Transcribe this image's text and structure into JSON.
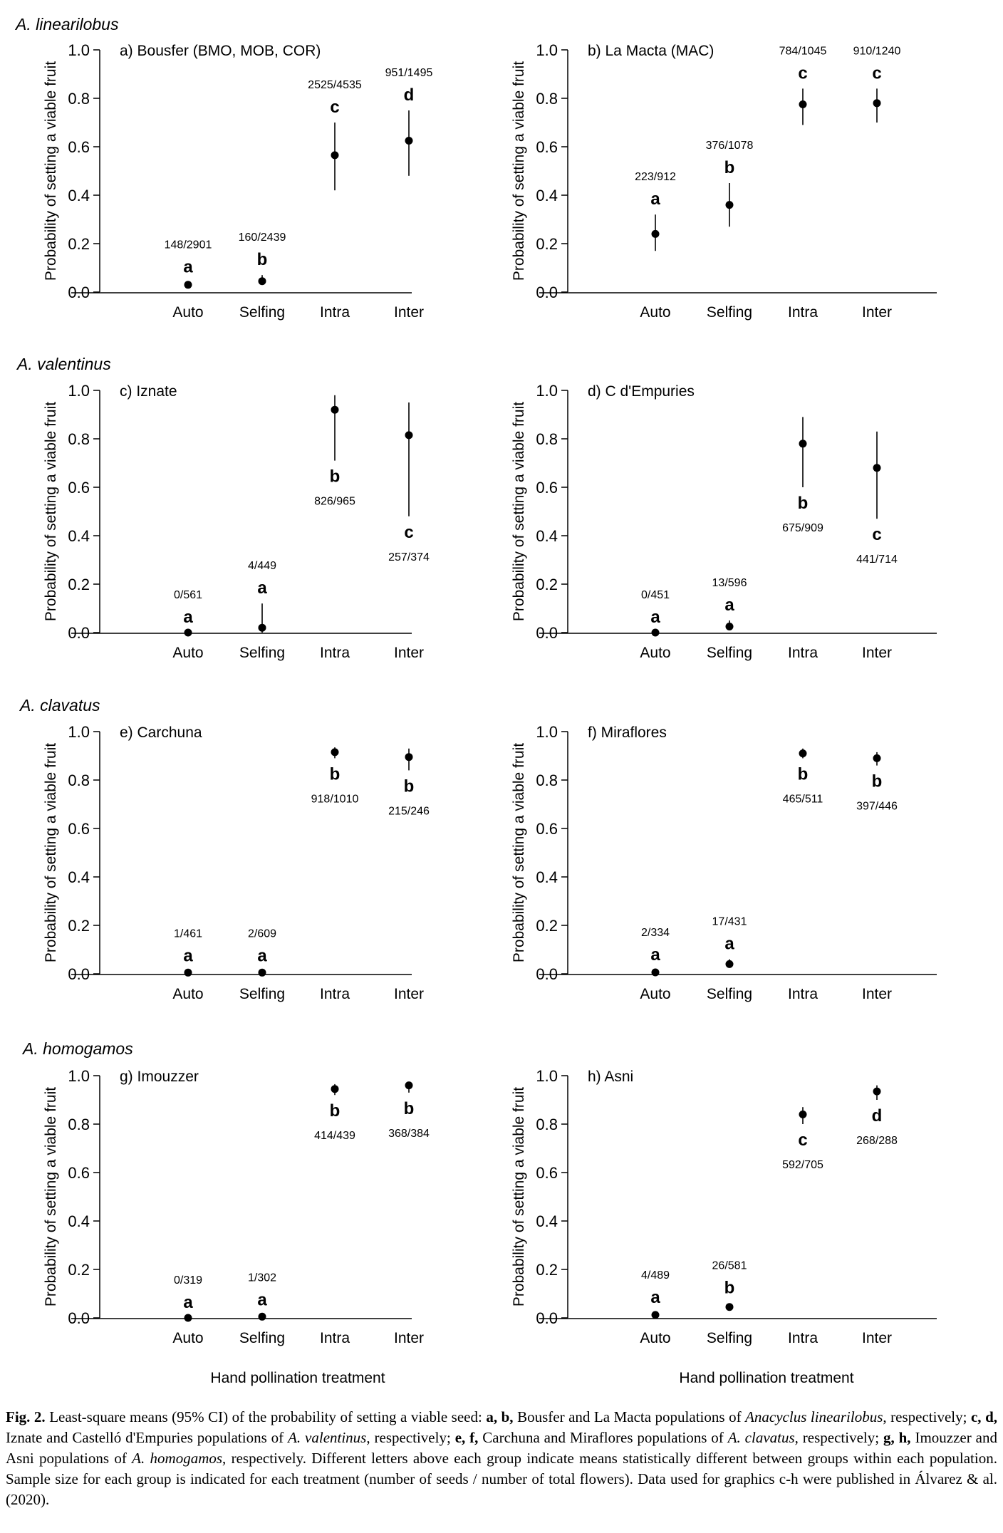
{
  "figure": {
    "xlabel": "Hand pollination treatment",
    "ylabel": "Probability of setting a viable fruit"
  },
  "species": [
    {
      "name": "A. linearilobus"
    },
    {
      "name": "A. valentinus"
    },
    {
      "name": "A. clavatus"
    },
    {
      "name": "A. homogamos"
    }
  ],
  "chart_data": [
    {
      "type": "scatter",
      "panel": "a",
      "title": "a) Bousfer (BMO, MOB, COR)",
      "species": "A. linearilobus",
      "categories": [
        "Auto",
        "Selfing",
        "Intra",
        "Inter"
      ],
      "ylim": [
        0,
        1
      ],
      "yticks": [
        "0.0",
        "0.2",
        "0.4",
        "0.6",
        "0.8",
        "1.0"
      ],
      "points": [
        {
          "x": "Auto",
          "y": 0.03,
          "ci": [
            0.02,
            0.04
          ],
          "letter": "a",
          "n": "148/2901",
          "label_pos": "above"
        },
        {
          "x": "Selfing",
          "y": 0.045,
          "ci": [
            0.03,
            0.07
          ],
          "letter": "b",
          "n": "160/2439",
          "label_pos": "above"
        },
        {
          "x": "Intra",
          "y": 0.565,
          "ci": [
            0.42,
            0.7
          ],
          "letter": "c",
          "n": "2525/4535",
          "label_pos": "above"
        },
        {
          "x": "Inter",
          "y": 0.625,
          "ci": [
            0.48,
            0.75
          ],
          "letter": "d",
          "n": "951/1495",
          "label_pos": "above"
        }
      ]
    },
    {
      "type": "scatter",
      "panel": "b",
      "title": "b) La Macta (MAC)",
      "species": "A. linearilobus",
      "categories": [
        "Auto",
        "Selfing",
        "Intra",
        "Inter"
      ],
      "ylim": [
        0,
        1
      ],
      "yticks": [
        "0.0",
        "0.2",
        "0.4",
        "0.6",
        "0.8",
        "1.0"
      ],
      "points": [
        {
          "x": "Auto",
          "y": 0.24,
          "ci": [
            0.17,
            0.32
          ],
          "letter": "a",
          "n": "223/912",
          "label_pos": "above"
        },
        {
          "x": "Selfing",
          "y": 0.36,
          "ci": [
            0.27,
            0.45
          ],
          "letter": "b",
          "n": "376/1078",
          "label_pos": "above"
        },
        {
          "x": "Intra",
          "y": 0.775,
          "ci": [
            0.69,
            0.84
          ],
          "letter": "c",
          "n": "784/1045",
          "label_pos": "above"
        },
        {
          "x": "Inter",
          "y": 0.78,
          "ci": [
            0.7,
            0.84
          ],
          "letter": "c",
          "n": "910/1240",
          "label_pos": "above"
        }
      ]
    },
    {
      "type": "scatter",
      "panel": "c",
      "title": "c) Iznate",
      "species": "A. valentinus",
      "categories": [
        "Auto",
        "Selfing",
        "Intra",
        "Inter"
      ],
      "ylim": [
        0,
        1
      ],
      "yticks": [
        "0.0",
        "0.2",
        "0.4",
        "0.6",
        "0.8",
        "1.0"
      ],
      "points": [
        {
          "x": "Auto",
          "y": 0.0,
          "ci": [
            0.0,
            0.0
          ],
          "letter": "a",
          "n": "0/561",
          "label_pos": "above"
        },
        {
          "x": "Selfing",
          "y": 0.02,
          "ci": [
            0.0,
            0.12
          ],
          "letter": "a",
          "n": "4/449",
          "label_pos": "above"
        },
        {
          "x": "Intra",
          "y": 0.92,
          "ci": [
            0.71,
            0.98
          ],
          "letter": "b",
          "n": "826/965",
          "label_pos": "below"
        },
        {
          "x": "Inter",
          "y": 0.815,
          "ci": [
            0.48,
            0.95
          ],
          "letter": "c",
          "n": "257/374",
          "label_pos": "below"
        }
      ]
    },
    {
      "type": "scatter",
      "panel": "d",
      "title": "d) C d'Empuries",
      "species": "A. valentinus",
      "categories": [
        "Auto",
        "Selfing",
        "Intra",
        "Inter"
      ],
      "ylim": [
        0,
        1
      ],
      "yticks": [
        "0.0",
        "0.2",
        "0.4",
        "0.6",
        "0.8",
        "1.0"
      ],
      "points": [
        {
          "x": "Auto",
          "y": 0.0,
          "ci": [
            0.0,
            0.0
          ],
          "letter": "a",
          "n": "0/451",
          "label_pos": "above"
        },
        {
          "x": "Selfing",
          "y": 0.025,
          "ci": [
            0.01,
            0.05
          ],
          "letter": "a",
          "n": "13/596",
          "label_pos": "above"
        },
        {
          "x": "Intra",
          "y": 0.78,
          "ci": [
            0.6,
            0.89
          ],
          "letter": "b",
          "n": "675/909",
          "label_pos": "below"
        },
        {
          "x": "Inter",
          "y": 0.68,
          "ci": [
            0.47,
            0.83
          ],
          "letter": "c",
          "n": "441/714",
          "label_pos": "below"
        }
      ]
    },
    {
      "type": "scatter",
      "panel": "e",
      "title": "e) Carchuna",
      "species": "A. clavatus",
      "categories": [
        "Auto",
        "Selfing",
        "Intra",
        "Inter"
      ],
      "ylim": [
        0,
        1
      ],
      "yticks": [
        "0.0",
        "0.2",
        "0.4",
        "0.6",
        "0.8",
        "1.0"
      ],
      "points": [
        {
          "x": "Auto",
          "y": 0.005,
          "ci": [
            0.0,
            0.01
          ],
          "letter": "a",
          "n": "1/461",
          "label_pos": "above"
        },
        {
          "x": "Selfing",
          "y": 0.005,
          "ci": [
            0.0,
            0.01
          ],
          "letter": "a",
          "n": "2/609",
          "label_pos": "above"
        },
        {
          "x": "Intra",
          "y": 0.915,
          "ci": [
            0.89,
            0.935
          ],
          "letter": "b",
          "n": "918/1010",
          "label_pos": "below"
        },
        {
          "x": "Inter",
          "y": 0.895,
          "ci": [
            0.84,
            0.93
          ],
          "letter": "b",
          "n": "215/246",
          "label_pos": "below"
        }
      ]
    },
    {
      "type": "scatter",
      "panel": "f",
      "title": "f) Miraflores",
      "species": "A. clavatus",
      "categories": [
        "Auto",
        "Selfing",
        "Intra",
        "Inter"
      ],
      "ylim": [
        0,
        1
      ],
      "yticks": [
        "0.0",
        "0.2",
        "0.4",
        "0.6",
        "0.8",
        "1.0"
      ],
      "points": [
        {
          "x": "Auto",
          "y": 0.006,
          "ci": [
            0.0,
            0.015
          ],
          "letter": "a",
          "n": "2/334",
          "label_pos": "above"
        },
        {
          "x": "Selfing",
          "y": 0.04,
          "ci": [
            0.025,
            0.06
          ],
          "letter": "a",
          "n": "17/431",
          "label_pos": "above"
        },
        {
          "x": "Intra",
          "y": 0.91,
          "ci": [
            0.89,
            0.93
          ],
          "letter": "b",
          "n": "465/511",
          "label_pos": "below"
        },
        {
          "x": "Inter",
          "y": 0.89,
          "ci": [
            0.86,
            0.915
          ],
          "letter": "b",
          "n": "397/446",
          "label_pos": "below"
        }
      ]
    },
    {
      "type": "scatter",
      "panel": "g",
      "title": "g) Imouzzer",
      "species": "A. homogamos",
      "categories": [
        "Auto",
        "Selfing",
        "Intra",
        "Inter"
      ],
      "ylim": [
        0,
        1
      ],
      "yticks": [
        "0.0",
        "0.2",
        "0.4",
        "0.6",
        "0.8",
        "1.0"
      ],
      "points": [
        {
          "x": "Auto",
          "y": 0.0,
          "ci": [
            0.0,
            0.0
          ],
          "letter": "a",
          "n": "0/319",
          "label_pos": "above"
        },
        {
          "x": "Selfing",
          "y": 0.005,
          "ci": [
            0.0,
            0.01
          ],
          "letter": "a",
          "n": "1/302",
          "label_pos": "above"
        },
        {
          "x": "Intra",
          "y": 0.945,
          "ci": [
            0.92,
            0.965
          ],
          "letter": "b",
          "n": "414/439",
          "label_pos": "below"
        },
        {
          "x": "Inter",
          "y": 0.96,
          "ci": [
            0.93,
            0.975
          ],
          "letter": "b",
          "n": "368/384",
          "label_pos": "below"
        }
      ]
    },
    {
      "type": "scatter",
      "panel": "h",
      "title": "h) Asni",
      "species": "A. homogamos",
      "categories": [
        "Auto",
        "Selfing",
        "Intra",
        "Inter"
      ],
      "ylim": [
        0,
        1
      ],
      "yticks": [
        "0.0",
        "0.2",
        "0.4",
        "0.6",
        "0.8",
        "1.0"
      ],
      "points": [
        {
          "x": "Auto",
          "y": 0.012,
          "ci": [
            0.005,
            0.02
          ],
          "letter": "a",
          "n": "4/489",
          "label_pos": "above"
        },
        {
          "x": "Selfing",
          "y": 0.045,
          "ci": [
            0.03,
            0.06
          ],
          "letter": "b",
          "n": "26/581",
          "label_pos": "above"
        },
        {
          "x": "Intra",
          "y": 0.84,
          "ci": [
            0.8,
            0.87
          ],
          "letter": "c",
          "n": "592/705",
          "label_pos": "below"
        },
        {
          "x": "Inter",
          "y": 0.935,
          "ci": [
            0.9,
            0.96
          ],
          "letter": "d",
          "n": "268/288",
          "label_pos": "below"
        }
      ]
    }
  ],
  "caption": {
    "fig_label": "Fig. 2.",
    "segments": [
      {
        "text": "Least-square means (95% CI) of the probability of setting a viable seed: ",
        "style": ""
      },
      {
        "text": "a, b,",
        "style": "b"
      },
      {
        "text": " Bousfer and La Macta populations of ",
        "style": ""
      },
      {
        "text": "Anacyclus linearilobus",
        "style": "i"
      },
      {
        "text": ", respectively; ",
        "style": ""
      },
      {
        "text": "c, d,",
        "style": "b"
      },
      {
        "text": " Iznate and Castelló d'Empuries populations of ",
        "style": ""
      },
      {
        "text": "A. valentinus",
        "style": "i"
      },
      {
        "text": ", respectively; ",
        "style": ""
      },
      {
        "text": "e, f,",
        "style": "b"
      },
      {
        "text": " Carchuna and Miraflores populations of ",
        "style": ""
      },
      {
        "text": "A. clavatus",
        "style": "i"
      },
      {
        "text": ", respectively; ",
        "style": ""
      },
      {
        "text": "g, h,",
        "style": "b"
      },
      {
        "text": " Imouzzer and Asni populations of ",
        "style": ""
      },
      {
        "text": "A. homogamos",
        "style": "i"
      },
      {
        "text": ", respectively. Different letters above each group indicate means statistically different between groups within each population. Sample size for each group is indicated for each treatment (number of seeds / number of total flowers). Data used for graphics c-h were published in Álvarez & al. (2020).",
        "style": ""
      }
    ]
  }
}
